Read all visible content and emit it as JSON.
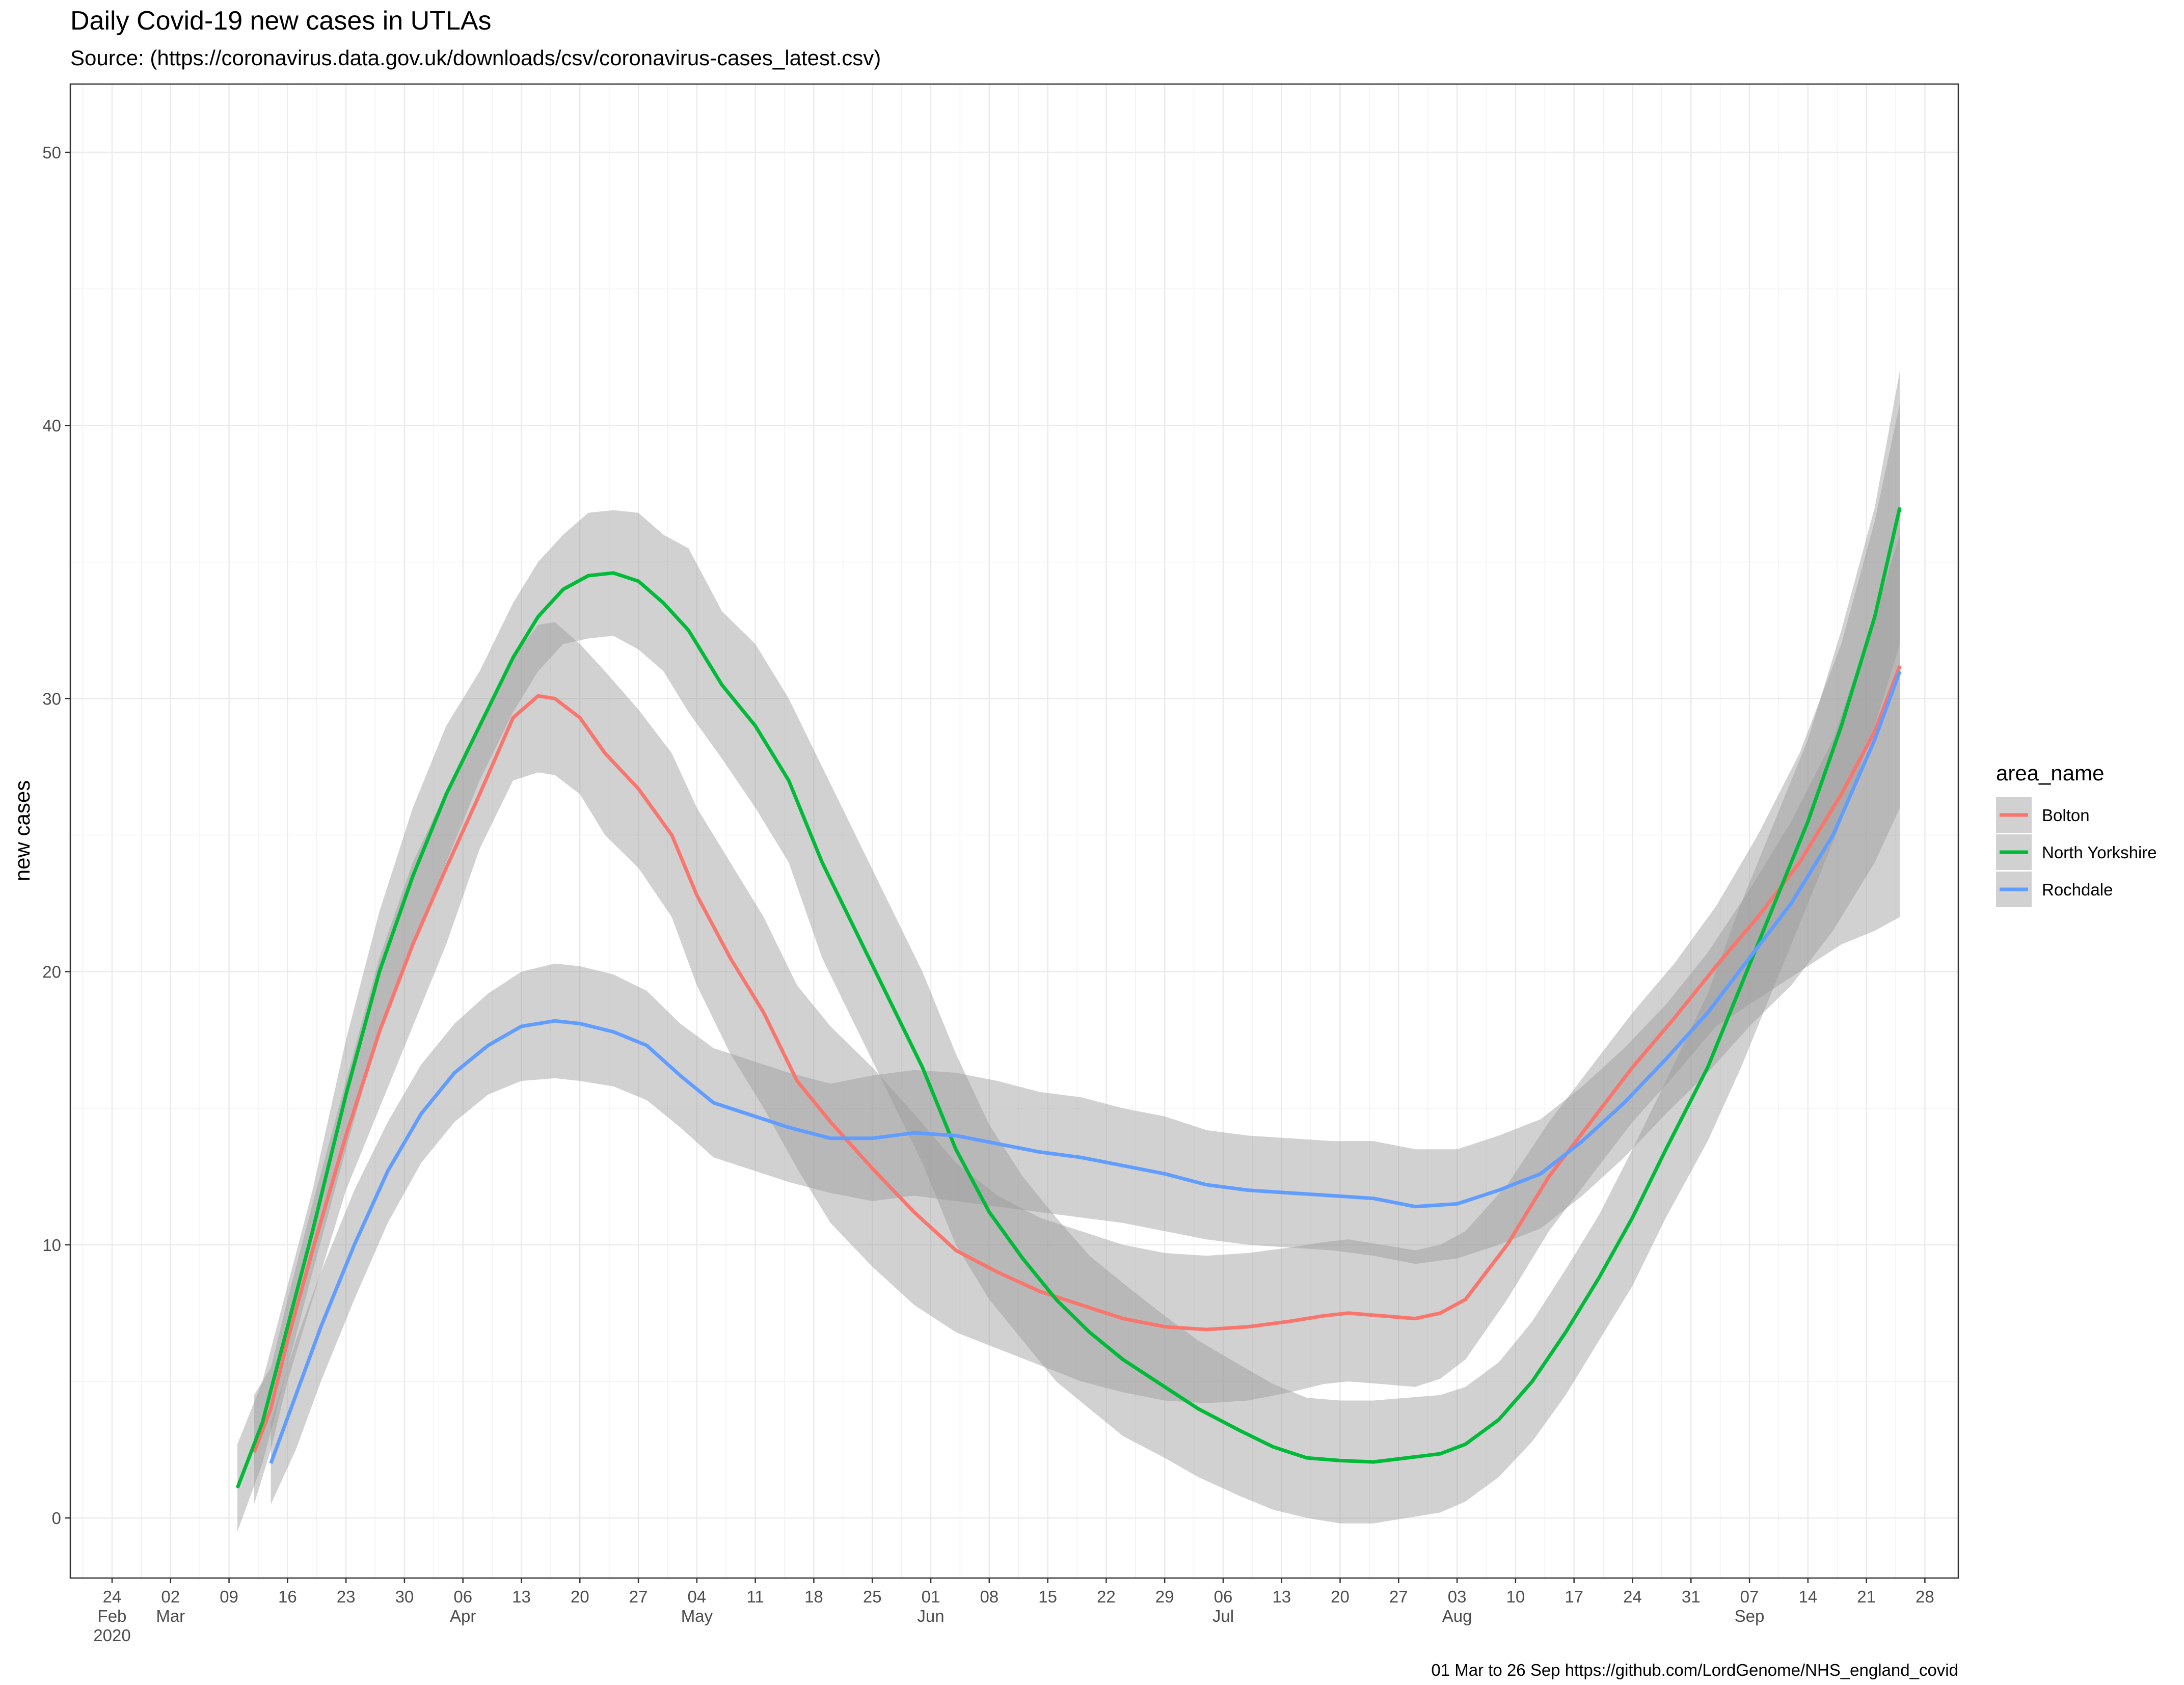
{
  "chart_data": {
    "type": "line",
    "title": "Daily Covid-19 new cases in UTLAs",
    "subtitle": "Source: (https://coronavirus.data.gov.uk/downloads/csv/coronavirus-cases_latest.csv)",
    "caption": "01 Mar to 26 Sep https://github.com/LordGenome/NHS_england_covid",
    "xlabel": "",
    "ylabel": "new cases",
    "xlim": [
      "2020-02-19",
      "2020-10-02"
    ],
    "ylim": [
      -2.2,
      52.5
    ],
    "y_ticks": [
      0,
      10,
      20,
      30,
      40,
      50
    ],
    "x_ticks": [
      {
        "date": "2020-02-24",
        "label": "24",
        "month": "Feb",
        "year": "2020"
      },
      {
        "date": "2020-03-02",
        "label": "02",
        "month": "Mar",
        "year": ""
      },
      {
        "date": "2020-03-09",
        "label": "09",
        "month": "",
        "year": ""
      },
      {
        "date": "2020-03-16",
        "label": "16",
        "month": "",
        "year": ""
      },
      {
        "date": "2020-03-23",
        "label": "23",
        "month": "",
        "year": ""
      },
      {
        "date": "2020-03-30",
        "label": "30",
        "month": "",
        "year": ""
      },
      {
        "date": "2020-04-06",
        "label": "06",
        "month": "Apr",
        "year": ""
      },
      {
        "date": "2020-04-13",
        "label": "13",
        "month": "",
        "year": ""
      },
      {
        "date": "2020-04-20",
        "label": "20",
        "month": "",
        "year": ""
      },
      {
        "date": "2020-04-27",
        "label": "27",
        "month": "",
        "year": ""
      },
      {
        "date": "2020-05-04",
        "label": "04",
        "month": "May",
        "year": ""
      },
      {
        "date": "2020-05-11",
        "label": "11",
        "month": "",
        "year": ""
      },
      {
        "date": "2020-05-18",
        "label": "18",
        "month": "",
        "year": ""
      },
      {
        "date": "2020-05-25",
        "label": "25",
        "month": "",
        "year": ""
      },
      {
        "date": "2020-06-01",
        "label": "01",
        "month": "Jun",
        "year": ""
      },
      {
        "date": "2020-06-08",
        "label": "08",
        "month": "",
        "year": ""
      },
      {
        "date": "2020-06-15",
        "label": "15",
        "month": "",
        "year": ""
      },
      {
        "date": "2020-06-22",
        "label": "22",
        "month": "",
        "year": ""
      },
      {
        "date": "2020-06-29",
        "label": "29",
        "month": "",
        "year": ""
      },
      {
        "date": "2020-07-06",
        "label": "06",
        "month": "Jul",
        "year": ""
      },
      {
        "date": "2020-07-13",
        "label": "13",
        "month": "",
        "year": ""
      },
      {
        "date": "2020-07-20",
        "label": "20",
        "month": "",
        "year": ""
      },
      {
        "date": "2020-07-27",
        "label": "27",
        "month": "",
        "year": ""
      },
      {
        "date": "2020-08-03",
        "label": "03",
        "month": "Aug",
        "year": ""
      },
      {
        "date": "2020-08-10",
        "label": "10",
        "month": "",
        "year": ""
      },
      {
        "date": "2020-08-17",
        "label": "17",
        "month": "",
        "year": ""
      },
      {
        "date": "2020-08-24",
        "label": "24",
        "month": "",
        "year": ""
      },
      {
        "date": "2020-08-31",
        "label": "31",
        "month": "",
        "year": ""
      },
      {
        "date": "2020-09-07",
        "label": "07",
        "month": "Sep",
        "year": ""
      },
      {
        "date": "2020-09-14",
        "label": "14",
        "month": "",
        "year": ""
      },
      {
        "date": "2020-09-21",
        "label": "21",
        "month": "",
        "year": ""
      },
      {
        "date": "2020-09-28",
        "label": "28",
        "month": "",
        "year": ""
      }
    ],
    "grid": true,
    "legend": {
      "title": "area_name",
      "position": "right"
    },
    "confidence_band_color": "#999999",
    "series": [
      {
        "name": "Bolton",
        "color": "#F8766D",
        "x": [
          "2020-03-12",
          "2020-03-14",
          "2020-03-16",
          "2020-03-19",
          "2020-03-23",
          "2020-03-27",
          "2020-03-31",
          "2020-04-04",
          "2020-04-08",
          "2020-04-12",
          "2020-04-15",
          "2020-04-17",
          "2020-04-20",
          "2020-04-23",
          "2020-04-27",
          "2020-05-01",
          "2020-05-04",
          "2020-05-08",
          "2020-05-12",
          "2020-05-16",
          "2020-05-20",
          "2020-05-25",
          "2020-05-30",
          "2020-06-04",
          "2020-06-09",
          "2020-06-14",
          "2020-06-19",
          "2020-06-24",
          "2020-06-29",
          "2020-07-04",
          "2020-07-09",
          "2020-07-14",
          "2020-07-18",
          "2020-07-21",
          "2020-07-25",
          "2020-07-29",
          "2020-08-01",
          "2020-08-04",
          "2020-08-09",
          "2020-08-14",
          "2020-08-19",
          "2020-08-24",
          "2020-08-29",
          "2020-09-03",
          "2020-09-08",
          "2020-09-13",
          "2020-09-18",
          "2020-09-22",
          "2020-09-25"
        ],
        "values": [
          2.4,
          4.0,
          6.5,
          9.8,
          14.0,
          17.8,
          21.0,
          23.8,
          26.5,
          29.3,
          30.1,
          30.0,
          29.3,
          28.0,
          26.7,
          25.0,
          22.8,
          20.5,
          18.5,
          16.0,
          14.5,
          12.8,
          11.2,
          9.8,
          9.0,
          8.3,
          7.8,
          7.3,
          7.0,
          6.9,
          7.0,
          7.2,
          7.4,
          7.5,
          7.4,
          7.3,
          7.5,
          8.0,
          10.0,
          12.5,
          14.5,
          16.5,
          18.3,
          20.2,
          22.0,
          24.0,
          26.5,
          28.8,
          31.2
        ],
        "lower": [
          0.5,
          2.5,
          5.0,
          8.0,
          12.0,
          15.0,
          18.0,
          21.0,
          24.5,
          27.0,
          27.3,
          27.2,
          26.5,
          25.0,
          23.8,
          22.0,
          19.5,
          17.0,
          15.0,
          12.8,
          10.8,
          9.2,
          7.8,
          6.8,
          6.2,
          5.6,
          5.0,
          4.6,
          4.3,
          4.2,
          4.3,
          4.6,
          4.9,
          5.0,
          4.9,
          4.8,
          5.1,
          5.8,
          8.0,
          10.5,
          12.5,
          14.5,
          16.2,
          18.0,
          19.0,
          20.0,
          21.0,
          21.5,
          22.0
        ],
        "upper": [
          4.5,
          5.5,
          8.0,
          11.5,
          16.0,
          20.5,
          24.0,
          26.6,
          29.0,
          31.5,
          32.7,
          32.8,
          32.0,
          31.0,
          29.6,
          28.0,
          26.0,
          24.0,
          22.0,
          19.5,
          18.0,
          16.5,
          14.8,
          13.0,
          11.8,
          11.0,
          10.5,
          10.0,
          9.7,
          9.6,
          9.7,
          9.9,
          10.1,
          10.2,
          10.0,
          9.8,
          10.0,
          10.5,
          12.2,
          14.5,
          16.5,
          18.5,
          20.3,
          22.4,
          25.0,
          28.0,
          32.0,
          36.5,
          40.8
        ]
      },
      {
        "name": "North Yorkshire",
        "color": "#00BA38",
        "x": [
          "2020-03-10",
          "2020-03-13",
          "2020-03-16",
          "2020-03-19",
          "2020-03-23",
          "2020-03-27",
          "2020-03-31",
          "2020-04-04",
          "2020-04-08",
          "2020-04-12",
          "2020-04-15",
          "2020-04-18",
          "2020-04-21",
          "2020-04-24",
          "2020-04-27",
          "2020-04-30",
          "2020-05-03",
          "2020-05-07",
          "2020-05-11",
          "2020-05-15",
          "2020-05-19",
          "2020-05-23",
          "2020-05-27",
          "2020-05-31",
          "2020-06-04",
          "2020-06-08",
          "2020-06-12",
          "2020-06-16",
          "2020-06-20",
          "2020-06-24",
          "2020-06-29",
          "2020-07-03",
          "2020-07-08",
          "2020-07-12",
          "2020-07-16",
          "2020-07-20",
          "2020-07-24",
          "2020-07-28",
          "2020-08-01",
          "2020-08-04",
          "2020-08-08",
          "2020-08-12",
          "2020-08-16",
          "2020-08-20",
          "2020-08-24",
          "2020-08-28",
          "2020-09-02",
          "2020-09-06",
          "2020-09-10",
          "2020-09-14",
          "2020-09-18",
          "2020-09-22",
          "2020-09-25"
        ],
        "values": [
          1.1,
          3.5,
          7.0,
          10.5,
          15.5,
          20.0,
          23.5,
          26.5,
          29.0,
          31.5,
          33.0,
          34.0,
          34.5,
          34.6,
          34.3,
          33.5,
          32.5,
          30.5,
          29.0,
          27.0,
          24.0,
          21.5,
          19.0,
          16.5,
          13.5,
          11.2,
          9.5,
          8.0,
          6.8,
          5.8,
          4.8,
          4.0,
          3.2,
          2.6,
          2.2,
          2.1,
          2.05,
          2.2,
          2.35,
          2.7,
          3.6,
          5.0,
          6.8,
          8.8,
          11.0,
          13.5,
          16.5,
          19.5,
          22.5,
          25.5,
          29.0,
          33.0,
          37.0
        ],
        "lower": [
          -0.5,
          2.0,
          5.5,
          9.0,
          13.5,
          17.8,
          21.0,
          24.0,
          27.0,
          29.5,
          31.0,
          32.0,
          32.2,
          32.3,
          31.8,
          31.0,
          29.5,
          27.8,
          26.0,
          24.0,
          20.5,
          18.0,
          15.5,
          13.0,
          10.0,
          8.0,
          6.5,
          5.0,
          4.0,
          3.0,
          2.2,
          1.5,
          0.8,
          0.3,
          0.0,
          -0.2,
          -0.2,
          0.0,
          0.2,
          0.6,
          1.5,
          2.8,
          4.5,
          6.5,
          8.5,
          11.0,
          13.8,
          16.5,
          19.5,
          22.5,
          25.5,
          29.0,
          32.0
        ],
        "upper": [
          2.7,
          5.0,
          8.5,
          12.0,
          17.5,
          22.2,
          26.0,
          29.0,
          31.0,
          33.5,
          35.0,
          36.0,
          36.8,
          36.9,
          36.8,
          36.0,
          35.5,
          33.2,
          32.0,
          30.0,
          27.5,
          25.0,
          22.5,
          20.0,
          17.0,
          14.4,
          12.5,
          11.0,
          9.6,
          8.6,
          7.4,
          6.5,
          5.6,
          4.9,
          4.4,
          4.3,
          4.3,
          4.4,
          4.5,
          4.8,
          5.7,
          7.2,
          9.1,
          11.1,
          13.5,
          16.0,
          19.2,
          22.5,
          25.5,
          28.5,
          32.5,
          37.0,
          42.0
        ]
      },
      {
        "name": "Rochdale",
        "color": "#619CFF",
        "x": [
          "2020-03-14",
          "2020-03-17",
          "2020-03-20",
          "2020-03-24",
          "2020-03-28",
          "2020-04-01",
          "2020-04-05",
          "2020-04-09",
          "2020-04-13",
          "2020-04-17",
          "2020-04-20",
          "2020-04-24",
          "2020-04-28",
          "2020-05-02",
          "2020-05-06",
          "2020-05-10",
          "2020-05-15",
          "2020-05-20",
          "2020-05-25",
          "2020-05-30",
          "2020-06-04",
          "2020-06-09",
          "2020-06-14",
          "2020-06-19",
          "2020-06-24",
          "2020-06-29",
          "2020-07-04",
          "2020-07-09",
          "2020-07-14",
          "2020-07-19",
          "2020-07-24",
          "2020-07-29",
          "2020-08-03",
          "2020-08-08",
          "2020-08-13",
          "2020-08-18",
          "2020-08-23",
          "2020-08-28",
          "2020-09-02",
          "2020-09-07",
          "2020-09-12",
          "2020-09-17",
          "2020-09-22",
          "2020-09-25"
        ],
        "values": [
          2.0,
          4.5,
          7.0,
          10.0,
          12.7,
          14.8,
          16.3,
          17.3,
          18.0,
          18.2,
          18.1,
          17.8,
          17.3,
          16.2,
          15.2,
          14.8,
          14.3,
          13.9,
          13.9,
          14.1,
          14.0,
          13.7,
          13.4,
          13.2,
          12.9,
          12.6,
          12.2,
          12.0,
          11.9,
          11.8,
          11.7,
          11.4,
          11.5,
          12.0,
          12.6,
          13.8,
          15.2,
          16.8,
          18.5,
          20.5,
          22.5,
          25.0,
          28.5,
          31.0
        ],
        "lower": [
          0.5,
          2.5,
          5.0,
          8.0,
          10.8,
          13.0,
          14.5,
          15.5,
          16.0,
          16.1,
          16.0,
          15.8,
          15.3,
          14.3,
          13.2,
          12.8,
          12.3,
          11.9,
          11.6,
          11.8,
          11.6,
          11.4,
          11.2,
          11.0,
          10.8,
          10.5,
          10.2,
          10.0,
          9.9,
          9.8,
          9.6,
          9.3,
          9.5,
          10.0,
          10.6,
          11.8,
          13.2,
          14.8,
          16.3,
          18.0,
          19.5,
          21.5,
          24.0,
          26.0
        ],
        "upper": [
          3.5,
          6.5,
          9.0,
          12.0,
          14.5,
          16.6,
          18.1,
          19.2,
          20.0,
          20.3,
          20.2,
          19.9,
          19.3,
          18.1,
          17.2,
          16.8,
          16.3,
          15.9,
          16.2,
          16.4,
          16.3,
          16.0,
          15.6,
          15.4,
          15.0,
          14.7,
          14.2,
          14.0,
          13.9,
          13.8,
          13.8,
          13.5,
          13.5,
          14.0,
          14.6,
          15.8,
          17.2,
          18.8,
          20.7,
          23.0,
          25.5,
          28.5,
          33.0,
          36.0
        ]
      }
    ]
  }
}
